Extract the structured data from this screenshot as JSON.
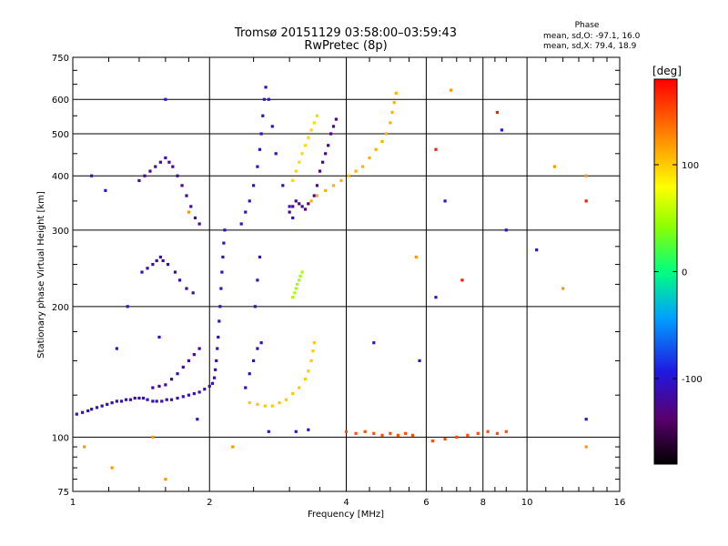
{
  "chart_data": {
    "type": "scatter",
    "title": "Tromsø 20151129 03:58:00–03:59:43",
    "subtitle": "RwPretec (8p)",
    "phase_info": {
      "heading": "Phase",
      "line1": "mean, sd,O: -97.1, 16.0",
      "line2": "mean, sd,X:  79.4, 18.9"
    },
    "xlabel": "Frequency [MHz]",
    "ylabel": "Stationary phase Virtual Height [km]",
    "xscale": "log",
    "yscale": "log",
    "xlim": [
      1,
      16
    ],
    "ylim": [
      75,
      750
    ],
    "xticks": [
      1,
      2,
      4,
      6,
      8,
      10,
      16
    ],
    "xtick_labels": [
      "1",
      "2",
      "4",
      "6",
      "8",
      "10",
      "16"
    ],
    "yticks": [
      75,
      100,
      200,
      300,
      400,
      500,
      600,
      750
    ],
    "ytick_labels": [
      "75",
      "100",
      "200",
      "300",
      "400",
      "500",
      "600",
      "750"
    ],
    "grid": true,
    "colorbar": {
      "label": "[deg]",
      "range": [
        -180,
        180
      ],
      "ticks": [
        100,
        0,
        -100
      ],
      "tick_labels": [
        "100",
        "0",
        "-100"
      ]
    },
    "series": [
      {
        "color_phase": -110,
        "points": [
          [
            1.02,
            113
          ],
          [
            1.05,
            114
          ],
          [
            1.08,
            115
          ],
          [
            1.1,
            116
          ],
          [
            1.13,
            117
          ],
          [
            1.16,
            118
          ],
          [
            1.19,
            119
          ],
          [
            1.22,
            120
          ],
          [
            1.25,
            121
          ],
          [
            1.28,
            121
          ],
          [
            1.31,
            122
          ],
          [
            1.34,
            122
          ],
          [
            1.37,
            123
          ],
          [
            1.4,
            123
          ],
          [
            1.43,
            123
          ],
          [
            1.46,
            122
          ],
          [
            1.5,
            121
          ],
          [
            1.53,
            121
          ],
          [
            1.57,
            121
          ],
          [
            1.61,
            122
          ],
          [
            1.65,
            122
          ],
          [
            1.7,
            123
          ],
          [
            1.75,
            124
          ],
          [
            1.8,
            125
          ],
          [
            1.85,
            126
          ],
          [
            1.9,
            127
          ],
          [
            1.95,
            129
          ],
          [
            2.0,
            131
          ],
          [
            2.03,
            133
          ],
          [
            2.05,
            137
          ],
          [
            2.06,
            143
          ],
          [
            2.07,
            150
          ],
          [
            2.08,
            160
          ],
          [
            2.09,
            170
          ],
          [
            2.1,
            185
          ],
          [
            2.11,
            200
          ],
          [
            2.12,
            220
          ],
          [
            2.13,
            240
          ],
          [
            2.14,
            260
          ],
          [
            2.15,
            280
          ],
          [
            2.16,
            300
          ]
        ]
      },
      {
        "color_phase": -120,
        "points": [
          [
            1.5,
            130
          ],
          [
            1.55,
            131
          ],
          [
            1.6,
            132
          ],
          [
            1.65,
            136
          ],
          [
            1.7,
            140
          ],
          [
            1.75,
            145
          ],
          [
            1.8,
            150
          ],
          [
            1.85,
            155
          ],
          [
            1.9,
            160
          ]
        ]
      },
      {
        "color_phase": -115,
        "points": [
          [
            1.42,
            240
          ],
          [
            1.46,
            245
          ],
          [
            1.5,
            250
          ],
          [
            1.53,
            255
          ],
          [
            1.56,
            260
          ],
          [
            1.58,
            255
          ],
          [
            1.62,
            250
          ],
          [
            1.68,
            240
          ],
          [
            1.72,
            230
          ],
          [
            1.78,
            220
          ],
          [
            1.84,
            215
          ]
        ]
      },
      {
        "color_phase": -120,
        "points": [
          [
            1.4,
            390
          ],
          [
            1.44,
            400
          ],
          [
            1.48,
            410
          ],
          [
            1.52,
            420
          ],
          [
            1.56,
            430
          ],
          [
            1.6,
            440
          ],
          [
            1.63,
            430
          ],
          [
            1.66,
            420
          ],
          [
            1.7,
            400
          ],
          [
            1.74,
            380
          ],
          [
            1.78,
            360
          ],
          [
            1.82,
            340
          ],
          [
            1.86,
            320
          ],
          [
            1.9,
            310
          ]
        ]
      },
      {
        "color_phase": -105,
        "points": [
          [
            2.35,
            310
          ],
          [
            2.4,
            330
          ],
          [
            2.45,
            350
          ],
          [
            2.5,
            380
          ],
          [
            2.55,
            420
          ],
          [
            2.58,
            460
          ],
          [
            2.6,
            500
          ],
          [
            2.62,
            550
          ],
          [
            2.64,
            600
          ],
          [
            2.66,
            640
          ],
          [
            2.7,
            600
          ],
          [
            2.75,
            520
          ],
          [
            2.8,
            450
          ],
          [
            2.9,
            380
          ],
          [
            3.0,
            340
          ],
          [
            3.05,
            320
          ]
        ]
      },
      {
        "color_phase": -110,
        "points": [
          [
            2.4,
            130
          ],
          [
            2.45,
            140
          ],
          [
            2.5,
            150
          ],
          [
            2.55,
            160
          ],
          [
            2.6,
            165
          ],
          [
            2.52,
            200
          ],
          [
            2.55,
            230
          ],
          [
            2.58,
            260
          ]
        ]
      },
      {
        "color_phase": -130,
        "points": [
          [
            3.0,
            330
          ],
          [
            3.05,
            340
          ],
          [
            3.1,
            350
          ],
          [
            3.15,
            345
          ],
          [
            3.2,
            340
          ],
          [
            3.25,
            335
          ],
          [
            3.3,
            345
          ],
          [
            3.4,
            360
          ],
          [
            3.45,
            380
          ],
          [
            3.5,
            410
          ],
          [
            3.55,
            430
          ],
          [
            3.6,
            450
          ],
          [
            3.65,
            470
          ],
          [
            3.7,
            500
          ],
          [
            3.75,
            520
          ],
          [
            3.8,
            540
          ]
        ]
      },
      {
        "color_phase": 100,
        "points": [
          [
            2.45,
            120
          ],
          [
            2.55,
            119
          ],
          [
            2.65,
            118
          ],
          [
            2.75,
            118
          ],
          [
            2.85,
            120
          ],
          [
            2.95,
            122
          ],
          [
            3.05,
            126
          ],
          [
            3.15,
            130
          ],
          [
            3.25,
            136
          ],
          [
            3.3,
            142
          ],
          [
            3.35,
            150
          ],
          [
            3.38,
            158
          ],
          [
            3.4,
            165
          ]
        ]
      },
      {
        "color_phase": 50,
        "points": [
          [
            3.05,
            210
          ],
          [
            3.08,
            215
          ],
          [
            3.1,
            220
          ],
          [
            3.12,
            225
          ],
          [
            3.15,
            230
          ],
          [
            3.17,
            235
          ],
          [
            3.2,
            240
          ]
        ]
      },
      {
        "color_phase": 110,
        "points": [
          [
            3.35,
            350
          ],
          [
            3.45,
            360
          ],
          [
            3.6,
            370
          ],
          [
            3.75,
            380
          ],
          [
            3.9,
            390
          ],
          [
            4.05,
            400
          ],
          [
            4.2,
            410
          ],
          [
            4.35,
            420
          ],
          [
            4.5,
            440
          ],
          [
            4.65,
            460
          ],
          [
            4.8,
            480
          ],
          [
            4.9,
            500
          ],
          [
            5.0,
            530
          ],
          [
            5.05,
            560
          ],
          [
            5.1,
            590
          ],
          [
            5.15,
            620
          ]
        ]
      },
      {
        "color_phase": 95,
        "points": [
          [
            3.05,
            390
          ],
          [
            3.1,
            410
          ],
          [
            3.15,
            430
          ],
          [
            3.2,
            450
          ],
          [
            3.25,
            470
          ],
          [
            3.3,
            490
          ],
          [
            3.35,
            510
          ],
          [
            3.4,
            530
          ],
          [
            3.45,
            550
          ]
        ]
      },
      {
        "color_phase": 150,
        "points": [
          [
            4.0,
            103
          ],
          [
            4.2,
            102
          ],
          [
            4.4,
            103
          ],
          [
            4.6,
            102
          ],
          [
            4.8,
            101
          ],
          [
            5.0,
            102
          ],
          [
            5.2,
            101
          ],
          [
            5.4,
            102
          ],
          [
            5.6,
            101
          ],
          [
            6.2,
            98
          ],
          [
            6.6,
            99
          ],
          [
            7.0,
            100
          ],
          [
            7.4,
            101
          ],
          [
            7.8,
            102
          ],
          [
            8.2,
            103
          ],
          [
            8.6,
            102
          ],
          [
            9.0,
            103
          ]
        ]
      },
      {
        "color_phase": -100,
        "points": [
          [
            1.1,
            400
          ],
          [
            1.18,
            370
          ],
          [
            1.25,
            160
          ],
          [
            1.32,
            200
          ],
          [
            1.55,
            170
          ],
          [
            1.6,
            600
          ],
          [
            1.88,
            110
          ],
          [
            2.7,
            103
          ],
          [
            3.1,
            103
          ],
          [
            3.3,
            104
          ],
          [
            4.6,
            165
          ],
          [
            5.8,
            150
          ],
          [
            6.3,
            210
          ],
          [
            6.6,
            350
          ],
          [
            8.8,
            510
          ],
          [
            9.0,
            300
          ],
          [
            10.5,
            270
          ],
          [
            13.5,
            110
          ]
        ]
      },
      {
        "color_phase": 120,
        "points": [
          [
            1.06,
            95
          ],
          [
            1.22,
            85
          ],
          [
            1.5,
            100
          ],
          [
            1.6,
            80
          ],
          [
            1.8,
            330
          ],
          [
            2.25,
            95
          ],
          [
            5.7,
            260
          ],
          [
            6.8,
            630
          ],
          [
            11.5,
            420
          ],
          [
            12.0,
            220
          ],
          [
            13.5,
            400
          ],
          [
            13.5,
            95
          ]
        ]
      },
      {
        "color_phase": 170,
        "points": [
          [
            6.3,
            460
          ],
          [
            7.2,
            230
          ],
          [
            8.6,
            560
          ],
          [
            13.5,
            350
          ]
        ]
      }
    ]
  }
}
